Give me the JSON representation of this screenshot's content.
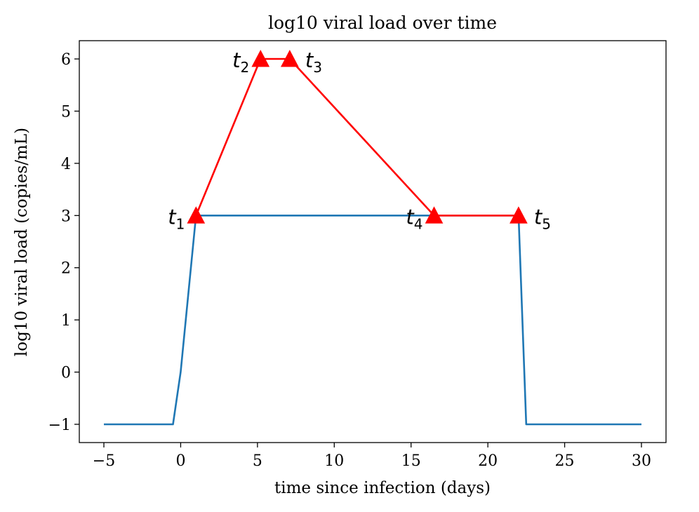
{
  "chart_data": {
    "type": "line",
    "title": "log10 viral load over time",
    "xlabel": "time since infection (days)",
    "ylabel": "log10 viral load (copies/mL)",
    "xlim": [
      -6.6,
      31.6
    ],
    "ylim": [
      -1.35,
      6.35
    ],
    "xticks": [
      -5,
      0,
      5,
      10,
      15,
      20,
      25,
      30
    ],
    "xtick_labels": [
      "−5",
      "0",
      "5",
      "10",
      "15",
      "20",
      "25",
      "30"
    ],
    "yticks": [
      -1,
      0,
      1,
      2,
      3,
      4,
      5,
      6
    ],
    "ytick_labels": [
      "−1",
      "0",
      "1",
      "2",
      "3",
      "4",
      "5",
      "6"
    ],
    "grid": false,
    "series": [
      {
        "name": "viral load",
        "color": "#1f77b4",
        "x": [
          -5,
          -0.5,
          0,
          1,
          1,
          22,
          22.5,
          30
        ],
        "y": [
          -1,
          -1,
          0,
          3,
          3,
          3,
          -1,
          -1
        ]
      },
      {
        "name": "key timepoints",
        "color": "#ff0000",
        "marker": "triangle",
        "x": [
          1,
          5.2,
          7.1,
          16.5,
          22
        ],
        "y": [
          3,
          6,
          6,
          3,
          3
        ],
        "labels": [
          {
            "base": "t",
            "sub": "1",
            "side": "left"
          },
          {
            "base": "t",
            "sub": "2",
            "side": "left"
          },
          {
            "base": "t",
            "sub": "3",
            "side": "right"
          },
          {
            "base": "t",
            "sub": "4",
            "side": "left"
          },
          {
            "base": "t",
            "sub": "5",
            "side": "right"
          }
        ]
      }
    ]
  }
}
